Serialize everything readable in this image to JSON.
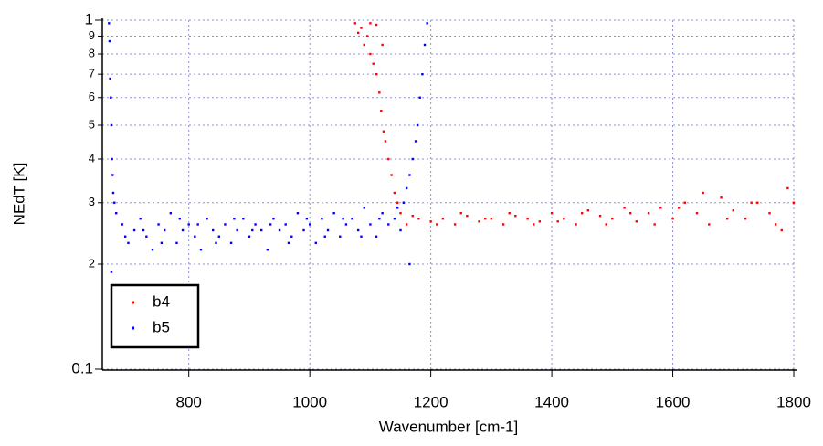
{
  "chart_data": {
    "type": "scatter",
    "xlabel": "Wavenumber [cm-1]",
    "ylabel": "NEdT [K]",
    "xlim": [
      657,
      1803
    ],
    "ylim": [
      0.1,
      1
    ],
    "log_y": true,
    "grid": true,
    "legend": "lower left",
    "xticks": [
      800,
      1000,
      1200,
      1400,
      1600,
      1800
    ],
    "yticks": [
      0.1,
      {
        "value": 0.2,
        "label": "2"
      },
      {
        "value": 0.3,
        "label": "3"
      },
      {
        "value": 0.4,
        "label": "4"
      },
      {
        "value": 0.5,
        "label": "5"
      },
      {
        "value": 0.6,
        "label": "6"
      },
      {
        "value": 0.7,
        "label": "7"
      },
      {
        "value": 0.8,
        "label": "8"
      },
      {
        "value": 0.9,
        "label": "9"
      },
      1
    ],
    "series": [
      {
        "name": "b4",
        "color": "#ff0000",
        "x": [
          1075,
          1080,
          1085,
          1090,
          1095,
          1100,
          1105,
          1110,
          1115,
          1118,
          1122,
          1125,
          1130,
          1135,
          1140,
          1145,
          1150,
          1100,
          1110,
          1120,
          1160,
          1180,
          1200,
          1220,
          1240,
          1260,
          1280,
          1300,
          1320,
          1340,
          1360,
          1380,
          1400,
          1420,
          1440,
          1460,
          1480,
          1500,
          1520,
          1540,
          1560,
          1580,
          1600,
          1620,
          1640,
          1660,
          1680,
          1700,
          1720,
          1740,
          1760,
          1780,
          1800,
          1170,
          1210,
          1250,
          1290,
          1330,
          1370,
          1410,
          1450,
          1490,
          1530,
          1570,
          1610,
          1650,
          1690,
          1730,
          1770,
          1790
        ],
        "values": [
          0.98,
          0.92,
          0.95,
          0.85,
          0.9,
          0.8,
          0.75,
          0.7,
          0.62,
          0.55,
          0.48,
          0.45,
          0.4,
          0.36,
          0.32,
          0.3,
          0.28,
          0.98,
          0.97,
          0.85,
          0.26,
          0.27,
          0.265,
          0.27,
          0.26,
          0.275,
          0.265,
          0.27,
          0.26,
          0.275,
          0.27,
          0.265,
          0.28,
          0.27,
          0.26,
          0.285,
          0.275,
          0.27,
          0.29,
          0.265,
          0.28,
          0.29,
          0.27,
          0.3,
          0.28,
          0.26,
          0.31,
          0.285,
          0.27,
          0.3,
          0.28,
          0.25,
          0.3,
          0.275,
          0.26,
          0.28,
          0.27,
          0.28,
          0.26,
          0.265,
          0.28,
          0.26,
          0.28,
          0.26,
          0.29,
          0.32,
          0.27,
          0.3,
          0.26,
          0.33
        ]
      },
      {
        "name": "b5",
        "color": "#0000ff",
        "x": [
          668,
          669,
          670,
          671,
          672,
          673,
          674,
          675,
          677,
          672,
          680,
          690,
          700,
          710,
          720,
          730,
          740,
          750,
          760,
          770,
          780,
          790,
          800,
          810,
          820,
          830,
          840,
          850,
          860,
          870,
          880,
          890,
          900,
          910,
          920,
          930,
          940,
          950,
          960,
          970,
          980,
          990,
          1000,
          1010,
          1020,
          1030,
          1040,
          1050,
          1060,
          1070,
          1080,
          1090,
          1100,
          1110,
          1120,
          1130,
          1140,
          1150,
          695,
          725,
          755,
          785,
          815,
          845,
          875,
          905,
          935,
          965,
          995,
          1025,
          1055,
          1085,
          1115,
          1145,
          1155,
          1160,
          1165,
          1170,
          1175,
          1178,
          1182,
          1186,
          1190,
          1194,
          1165
        ],
        "values": [
          0.98,
          0.87,
          0.68,
          0.6,
          0.5,
          0.4,
          0.36,
          0.32,
          0.3,
          0.19,
          0.28,
          0.26,
          0.23,
          0.25,
          0.27,
          0.24,
          0.22,
          0.26,
          0.25,
          0.28,
          0.23,
          0.25,
          0.26,
          0.24,
          0.22,
          0.27,
          0.25,
          0.24,
          0.26,
          0.23,
          0.25,
          0.27,
          0.24,
          0.26,
          0.25,
          0.22,
          0.27,
          0.25,
          0.26,
          0.24,
          0.28,
          0.25,
          0.26,
          0.23,
          0.27,
          0.25,
          0.28,
          0.24,
          0.26,
          0.27,
          0.25,
          0.29,
          0.26,
          0.24,
          0.28,
          0.26,
          0.27,
          0.25,
          0.24,
          0.25,
          0.23,
          0.27,
          0.26,
          0.23,
          0.27,
          0.25,
          0.26,
          0.23,
          0.27,
          0.24,
          0.27,
          0.24,
          0.27,
          0.29,
          0.3,
          0.33,
          0.36,
          0.4,
          0.45,
          0.5,
          0.6,
          0.7,
          0.85,
          0.98,
          0.2
        ]
      }
    ]
  }
}
